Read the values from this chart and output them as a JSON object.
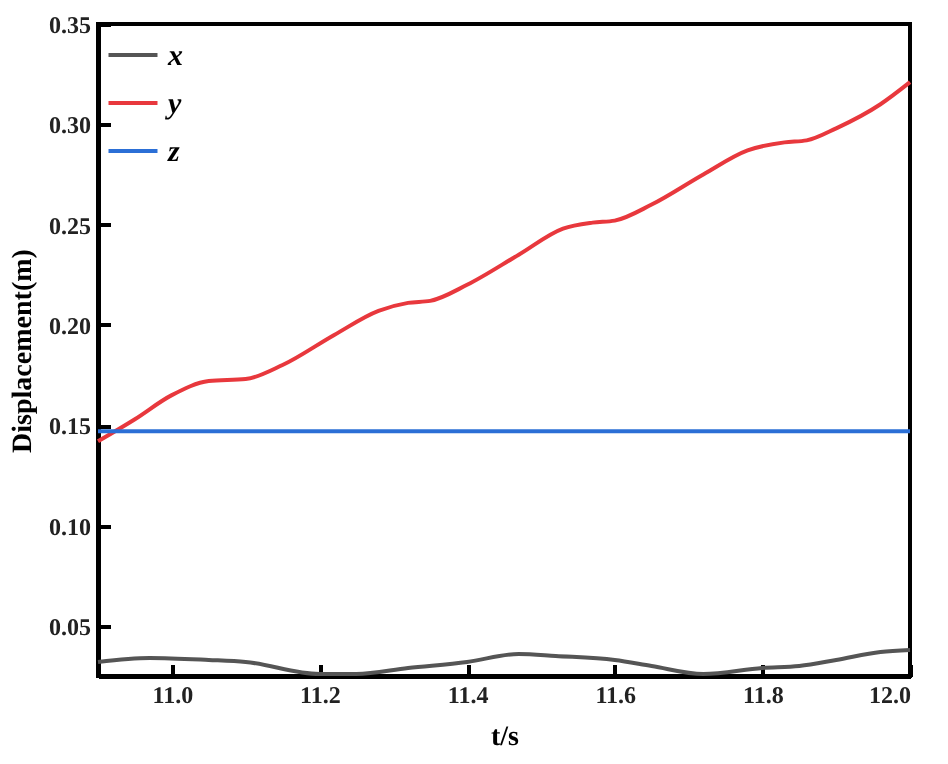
{
  "chart_data": {
    "type": "line",
    "xlabel": "t/s",
    "ylabel": "Displacement(m)",
    "xlim": [
      10.9,
      12.0
    ],
    "xticks": [
      {
        "value": 11.0,
        "label": "11.0"
      },
      {
        "value": 11.2,
        "label": "11.2"
      },
      {
        "value": 11.4,
        "label": "11.4"
      },
      {
        "value": 11.6,
        "label": "11.6"
      },
      {
        "value": 11.8,
        "label": "11.8"
      },
      {
        "value": 12.0,
        "label": "12.0"
      }
    ],
    "ylim": [
      0.025,
      0.35
    ],
    "yticks": [
      {
        "value": 0.05,
        "label": "0.05"
      },
      {
        "value": 0.1,
        "label": "0.10"
      },
      {
        "value": 0.15,
        "label": "0.15"
      },
      {
        "value": 0.2,
        "label": "0.20"
      },
      {
        "value": 0.25,
        "label": "0.25"
      },
      {
        "value": 0.3,
        "label": "0.30"
      },
      {
        "value": 0.35,
        "label": "0.35"
      }
    ],
    "grid": false,
    "legend": "top left",
    "line_style": "solid",
    "marker": "none",
    "series": [
      {
        "name": "x",
        "color": "#555555",
        "x": [
          10.9,
          10.97,
          11.05,
          11.1,
          11.2,
          11.25,
          11.32,
          11.4,
          11.47,
          11.52,
          11.6,
          11.65,
          11.72,
          11.8,
          11.85,
          11.9,
          11.96,
          12.0
        ],
        "values": [
          0.032,
          0.034,
          0.033,
          0.032,
          0.026,
          0.026,
          0.029,
          0.032,
          0.036,
          0.035,
          0.033,
          0.03,
          0.026,
          0.029,
          0.03,
          0.033,
          0.037,
          0.038
        ]
      },
      {
        "name": "y",
        "color": "#e8383d",
        "x": [
          10.9,
          10.95,
          11.0,
          11.05,
          11.1,
          11.15,
          11.22,
          11.28,
          11.32,
          11.35,
          11.4,
          11.47,
          11.53,
          11.57,
          11.6,
          11.65,
          11.72,
          11.78,
          11.83,
          11.86,
          11.9,
          11.96,
          12.0
        ],
        "values": [
          0.142,
          0.153,
          0.165,
          0.172,
          0.173,
          0.18,
          0.195,
          0.207,
          0.211,
          0.212,
          0.22,
          0.235,
          0.248,
          0.251,
          0.252,
          0.26,
          0.275,
          0.287,
          0.291,
          0.292,
          0.298,
          0.31,
          0.321
        ]
      },
      {
        "name": "z",
        "color": "#2b6fd6",
        "x": [
          10.9,
          12.0
        ],
        "values": [
          0.147,
          0.147
        ]
      }
    ]
  }
}
